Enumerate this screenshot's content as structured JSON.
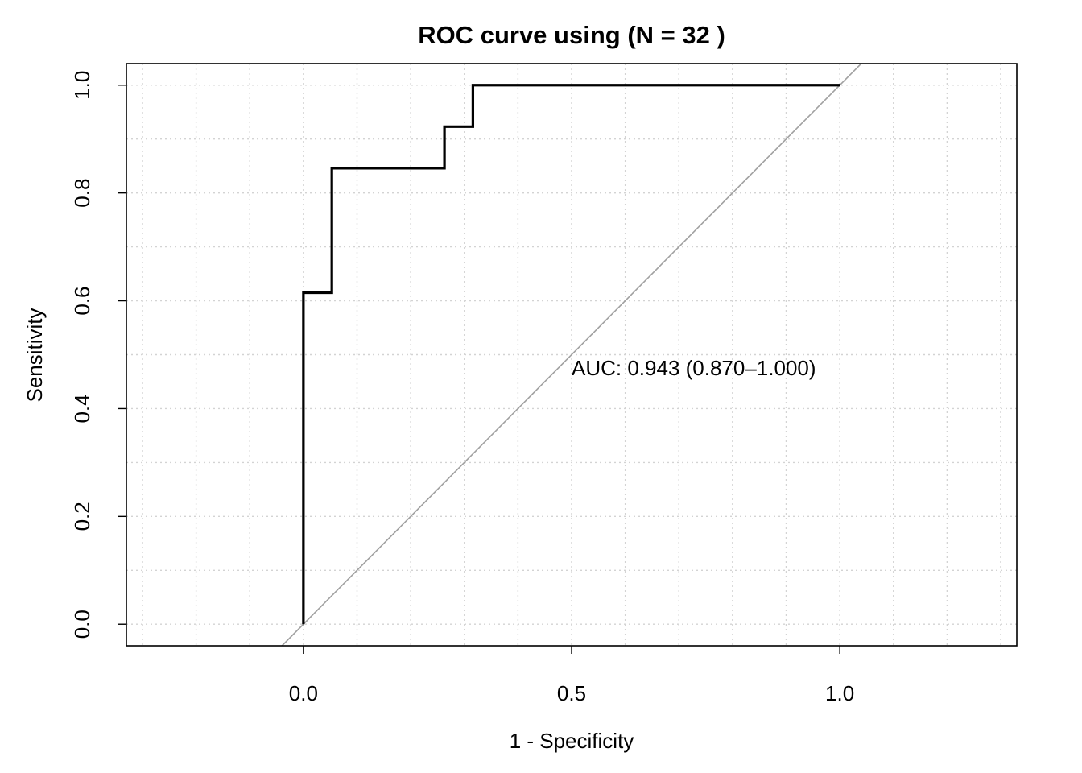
{
  "chart_data": {
    "type": "line",
    "title": "ROC curve using (N =  32 )",
    "xlabel": "1 - Specificity",
    "ylabel": "Sensitivity",
    "xlim": [
      -0.33,
      1.33
    ],
    "ylim": [
      -0.04,
      1.04
    ],
    "x_ticks": [
      0.0,
      0.5,
      1.0
    ],
    "x_tick_labels": [
      "0.0",
      "0.5",
      "1.0"
    ],
    "y_ticks": [
      0.0,
      0.2,
      0.4,
      0.6,
      0.8,
      1.0
    ],
    "y_tick_labels": [
      "0.0",
      "0.2",
      "0.4",
      "0.6",
      "0.8",
      "1.0"
    ],
    "grid": true,
    "series": [
      {
        "kind": "step",
        "color": "#000000",
        "x": [
          0.0,
          0.0,
          0.053,
          0.053,
          0.263,
          0.263,
          0.316,
          0.316,
          1.0
        ],
        "y": [
          0.0,
          0.615,
          0.615,
          0.846,
          0.846,
          0.923,
          0.923,
          1.0,
          1.0
        ]
      }
    ],
    "reference_line": {
      "color": "#a0a0a0",
      "slope": 1,
      "intercept": 0
    },
    "annotation": {
      "text": "AUC: 0.943 (0.870–1.000)",
      "x": 0.5,
      "y": 0.475
    }
  }
}
